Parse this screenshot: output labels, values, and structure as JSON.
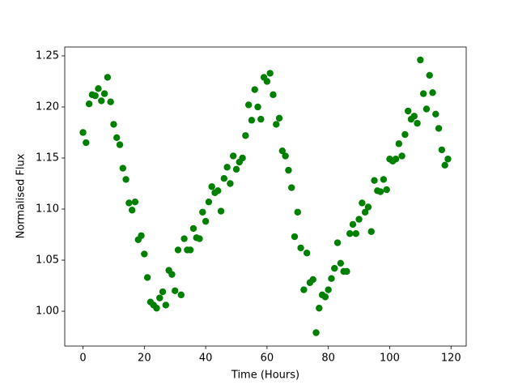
{
  "chart_data": {
    "type": "scatter",
    "x_label": "Time (Hours)",
    "y_label": "Normalised Flux",
    "color": "#008000",
    "x": [
      0,
      1,
      2,
      3,
      4,
      5,
      6,
      7,
      8,
      9,
      10,
      11,
      12,
      13,
      14,
      15,
      16,
      17,
      18,
      19,
      20,
      21,
      22,
      23,
      24,
      25,
      26,
      27,
      28,
      29,
      30,
      31,
      32,
      33,
      34,
      35,
      36,
      37,
      38,
      39,
      40,
      41,
      42,
      43,
      44,
      45,
      46,
      47,
      48,
      49,
      50,
      51,
      52,
      53,
      54,
      55,
      56,
      57,
      58,
      59,
      60,
      61,
      62,
      63,
      64,
      65,
      66,
      67,
      68,
      69,
      70,
      71,
      72,
      73,
      74,
      75,
      76,
      77,
      78,
      79,
      80,
      81,
      82,
      83,
      84,
      85,
      86,
      87,
      88,
      89,
      90,
      91,
      92,
      93,
      94,
      95,
      96,
      97,
      98,
      99,
      100,
      101,
      102,
      103,
      104,
      105,
      106,
      107,
      108,
      109,
      110,
      111,
      112,
      113,
      114,
      115,
      116,
      117,
      118,
      119
    ],
    "values": [
      1.175,
      1.165,
      1.203,
      1.212,
      1.211,
      1.218,
      1.206,
      1.213,
      1.229,
      1.205,
      1.183,
      1.17,
      1.163,
      1.14,
      1.129,
      1.106,
      1.099,
      1.107,
      1.07,
      1.074,
      1.056,
      1.033,
      1.009,
      1.006,
      1.003,
      1.013,
      1.019,
      1.006,
      1.04,
      1.036,
      1.02,
      1.06,
      1.016,
      1.071,
      1.06,
      1.06,
      1.081,
      1.072,
      1.071,
      1.097,
      1.088,
      1.107,
      1.122,
      1.116,
      1.118,
      1.098,
      1.13,
      1.141,
      1.125,
      1.152,
      1.139,
      1.146,
      1.15,
      1.172,
      1.202,
      1.187,
      1.217,
      1.2,
      1.188,
      1.229,
      1.225,
      1.233,
      1.212,
      1.183,
      1.189,
      1.157,
      1.152,
      1.138,
      1.121,
      1.073,
      1.097,
      1.062,
      1.021,
      1.057,
      1.028,
      1.031,
      0.979,
      1.003,
      1.016,
      1.014,
      1.021,
      1.032,
      1.042,
      1.067,
      1.047,
      1.039,
      1.039,
      1.076,
      1.085,
      1.076,
      1.09,
      1.106,
      1.097,
      1.102,
      1.078,
      1.128,
      1.118,
      1.117,
      1.129,
      1.119,
      1.149,
      1.147,
      1.149,
      1.164,
      1.152,
      1.173,
      1.196,
      1.188,
      1.191,
      1.184,
      1.246,
      1.213,
      1.198,
      1.231,
      1.214,
      1.193,
      1.179,
      1.158,
      1.143,
      1.149
    ],
    "xlim": [
      -5.95,
      124.95
    ],
    "xticks": [
      0,
      20,
      40,
      60,
      80,
      100,
      120
    ],
    "ylim": [
      0.9659,
      1.2587
    ],
    "yticks": [
      {
        "value": 1,
        "label": "1.00"
      },
      1.05,
      {
        "value": 1.1,
        "label": "1.10"
      },
      1.15,
      {
        "value": 1.2,
        "label": "1.20"
      },
      1.25
    ],
    "grid": false
  }
}
